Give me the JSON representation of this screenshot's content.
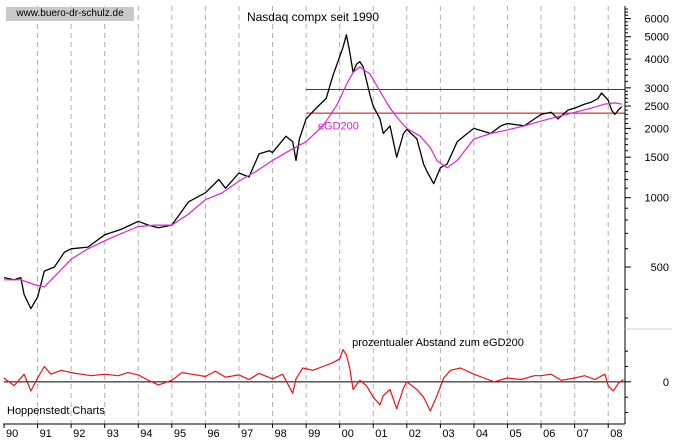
{
  "source_label": "www.buero-dr-schulz.de",
  "footer_label": "Hoppenstedt Charts",
  "colors": {
    "price": "#000000",
    "ema": "#dd22dd",
    "band": "#cc0000",
    "osc": "#ee1111",
    "grid": "#b0b0b0",
    "axis": "#000000"
  },
  "chart_data": [
    {
      "type": "line",
      "title": "Nasdaq compx seit 1990",
      "xlabel": "",
      "ylabel": "",
      "scale": "log",
      "grid": "vertical dashed at each year",
      "xlim": [
        1990.0,
        2008.5
      ],
      "ylim": [
        280,
        6800
      ],
      "yticks": [
        500,
        1000,
        1500,
        2000,
        2500,
        3000,
        4000,
        5000,
        6000
      ],
      "x_ticks": [
        "90",
        "91",
        "92",
        "93",
        "94",
        "95",
        "96",
        "97",
        "98",
        "99",
        "00",
        "01",
        "02",
        "03",
        "04",
        "05",
        "06",
        "07",
        "08"
      ],
      "annotations": [
        {
          "text": "eGD200",
          "x": 1999.35,
          "y": 1980
        }
      ],
      "horizontal_lines": [
        2950,
        2330
      ],
      "series": [
        {
          "name": "",
          "x": [
            1990.0,
            1990.3,
            1990.5,
            1990.6,
            1990.8,
            1991.0,
            1991.2,
            1991.5,
            1991.8,
            1992.0,
            1992.5,
            1993.0,
            1993.5,
            1994.0,
            1994.3,
            1994.6,
            1995.0,
            1995.5,
            1996.0,
            1996.4,
            1996.6,
            1997.0,
            1997.3,
            1997.6,
            1997.9,
            1998.0,
            1998.4,
            1998.6,
            1998.7,
            1998.8,
            1999.0,
            1999.3,
            1999.6,
            1999.8,
            2000.0,
            2000.1,
            2000.2,
            2000.3,
            2000.4,
            2000.5,
            2000.6,
            2000.7,
            2000.9,
            2001.0,
            2001.2,
            2001.3,
            2001.5,
            2001.7,
            2001.9,
            2002.0,
            2002.3,
            2002.5,
            2002.6,
            2002.8,
            2003.0,
            2003.2,
            2003.5,
            2003.8,
            2004.0,
            2004.5,
            2004.8,
            2005.0,
            2005.5,
            2005.8,
            2006.0,
            2006.3,
            2006.5,
            2006.8,
            2007.0,
            2007.3,
            2007.5,
            2007.7,
            2007.8,
            2008.0,
            2008.1,
            2008.2,
            2008.3,
            2008.4
          ],
          "values": [
            450,
            440,
            450,
            380,
            330,
            370,
            480,
            500,
            580,
            600,
            610,
            690,
            730,
            790,
            760,
            740,
            760,
            960,
            1050,
            1200,
            1100,
            1280,
            1230,
            1550,
            1600,
            1570,
            1850,
            1750,
            1450,
            1800,
            2200,
            2450,
            2700,
            3400,
            4100,
            4500,
            5100,
            4300,
            3500,
            3800,
            3900,
            3700,
            2800,
            2500,
            2200,
            1900,
            2050,
            1500,
            1900,
            1980,
            1800,
            1400,
            1300,
            1150,
            1350,
            1400,
            1750,
            1900,
            2000,
            1900,
            2050,
            2100,
            2050,
            2200,
            2300,
            2350,
            2200,
            2400,
            2450,
            2550,
            2600,
            2700,
            2850,
            2650,
            2400,
            2300,
            2400,
            2480
          ]
        },
        {
          "name": "",
          "x": [
            1990.0,
            1990.5,
            1990.9,
            1991.2,
            1991.6,
            1992.0,
            1992.5,
            1993.0,
            1993.5,
            1994.0,
            1994.5,
            1995.0,
            1995.5,
            1996.0,
            1996.5,
            1997.0,
            1997.5,
            1998.0,
            1998.5,
            1999.0,
            1999.5,
            1999.9,
            2000.2,
            2000.4,
            2000.6,
            2000.9,
            2001.2,
            2001.5,
            2001.8,
            2002.0,
            2002.4,
            2002.7,
            2002.9,
            2003.2,
            2003.5,
            2003.8,
            2004.0,
            2004.5,
            2005.0,
            2005.5,
            2006.0,
            2006.5,
            2007.0,
            2007.5,
            2007.9,
            2008.2,
            2008.4
          ],
          "values": [
            440,
            440,
            420,
            410,
            470,
            540,
            600,
            650,
            700,
            750,
            760,
            760,
            850,
            980,
            1050,
            1180,
            1300,
            1450,
            1600,
            1750,
            2050,
            2500,
            3100,
            3500,
            3700,
            3450,
            2900,
            2450,
            2150,
            2000,
            1850,
            1650,
            1450,
            1350,
            1450,
            1650,
            1800,
            1900,
            1970,
            2050,
            2150,
            2250,
            2350,
            2450,
            2550,
            2580,
            2550
          ]
        }
      ]
    },
    {
      "type": "line",
      "title": "prozentualer Abstand zum eGD200",
      "xlabel": "",
      "ylabel": "",
      "xlim": [
        1990.0,
        2008.5
      ],
      "ylim": [
        -55,
        65
      ],
      "yticks": [
        0
      ],
      "baseline": 0,
      "series": [
        {
          "name": "",
          "x": [
            1990.0,
            1990.3,
            1990.6,
            1990.8,
            1991.0,
            1991.2,
            1991.4,
            1991.7,
            1992.0,
            1992.3,
            1992.6,
            1993.0,
            1993.4,
            1993.7,
            1994.0,
            1994.3,
            1994.6,
            1995.0,
            1995.3,
            1995.6,
            1996.0,
            1996.3,
            1996.6,
            1997.0,
            1997.3,
            1997.6,
            1998.0,
            1998.3,
            1998.6,
            1998.7,
            1998.9,
            1999.2,
            1999.5,
            1999.8,
            2000.0,
            2000.1,
            2000.2,
            2000.3,
            2000.4,
            2000.6,
            2000.8,
            2001.0,
            2001.2,
            2001.3,
            2001.5,
            2001.7,
            2001.9,
            2002.0,
            2002.3,
            2002.5,
            2002.7,
            2002.9,
            2003.1,
            2003.3,
            2003.6,
            2004.0,
            2004.3,
            2004.6,
            2005.0,
            2005.4,
            2005.8,
            2006.0,
            2006.3,
            2006.6,
            2007.0,
            2007.3,
            2007.6,
            2007.9,
            2008.0,
            2008.15,
            2008.3,
            2008.45
          ],
          "values": [
            5,
            -5,
            10,
            -12,
            5,
            20,
            10,
            15,
            12,
            10,
            8,
            10,
            8,
            12,
            9,
            2,
            -4,
            2,
            12,
            10,
            7,
            14,
            6,
            9,
            3,
            11,
            4,
            10,
            -15,
            4,
            18,
            15,
            20,
            25,
            30,
            42,
            35,
            18,
            -10,
            2,
            -5,
            -20,
            -30,
            -18,
            -10,
            -35,
            -8,
            0,
            -10,
            -20,
            -38,
            -18,
            5,
            15,
            18,
            10,
            5,
            0,
            5,
            3,
            8,
            8,
            10,
            2,
            5,
            8,
            3,
            10,
            -5,
            -12,
            -2,
            3
          ]
        }
      ]
    }
  ]
}
